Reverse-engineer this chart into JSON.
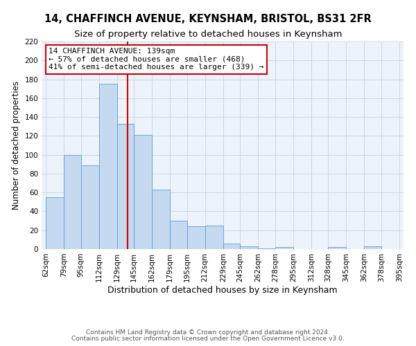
{
  "title": "14, CHAFFINCH AVENUE, KEYNSHAM, BRISTOL, BS31 2FR",
  "subtitle": "Size of property relative to detached houses in Keynsham",
  "xlabel": "Distribution of detached houses by size in Keynsham",
  "ylabel": "Number of detached properties",
  "bin_edges": [
    62,
    79,
    95,
    112,
    129,
    145,
    162,
    179,
    195,
    212,
    229,
    245,
    262,
    278,
    295,
    312,
    328,
    345,
    362,
    378,
    395
  ],
  "bar_heights": [
    55,
    100,
    89,
    175,
    133,
    121,
    63,
    30,
    24,
    25,
    6,
    3,
    1,
    2,
    0,
    0,
    2,
    0,
    3,
    0
  ],
  "bar_color": "#c5d9f0",
  "bar_edgecolor": "#5b9bd5",
  "vline_x": 139,
  "vline_color": "#cc0000",
  "ylim": [
    0,
    220
  ],
  "yticks": [
    0,
    20,
    40,
    60,
    80,
    100,
    120,
    140,
    160,
    180,
    200,
    220
  ],
  "xtick_labels": [
    "62sqm",
    "79sqm",
    "95sqm",
    "112sqm",
    "129sqm",
    "145sqm",
    "162sqm",
    "179sqm",
    "195sqm",
    "212sqm",
    "229sqm",
    "245sqm",
    "262sqm",
    "278sqm",
    "295sqm",
    "312sqm",
    "328sqm",
    "345sqm",
    "362sqm",
    "378sqm",
    "395sqm"
  ],
  "annotation_title": "14 CHAFFINCH AVENUE: 139sqm",
  "annotation_line1": "← 57% of detached houses are smaller (468)",
  "annotation_line2": "41% of semi-detached houses are larger (339) →",
  "annotation_box_facecolor": "#ffffff",
  "annotation_box_edgecolor": "#cc0000",
  "grid_color": "#c8d8ea",
  "bg_color": "#edf3fb",
  "footer1": "Contains HM Land Registry data © Crown copyright and database right 2024.",
  "footer2": "Contains public sector information licensed under the Open Government Licence v3.0.",
  "title_fontsize": 10.5,
  "subtitle_fontsize": 9.5,
  "xlabel_fontsize": 9,
  "ylabel_fontsize": 8.5,
  "tick_fontsize": 7.5,
  "annotation_fontsize": 8,
  "footer_fontsize": 6.5
}
